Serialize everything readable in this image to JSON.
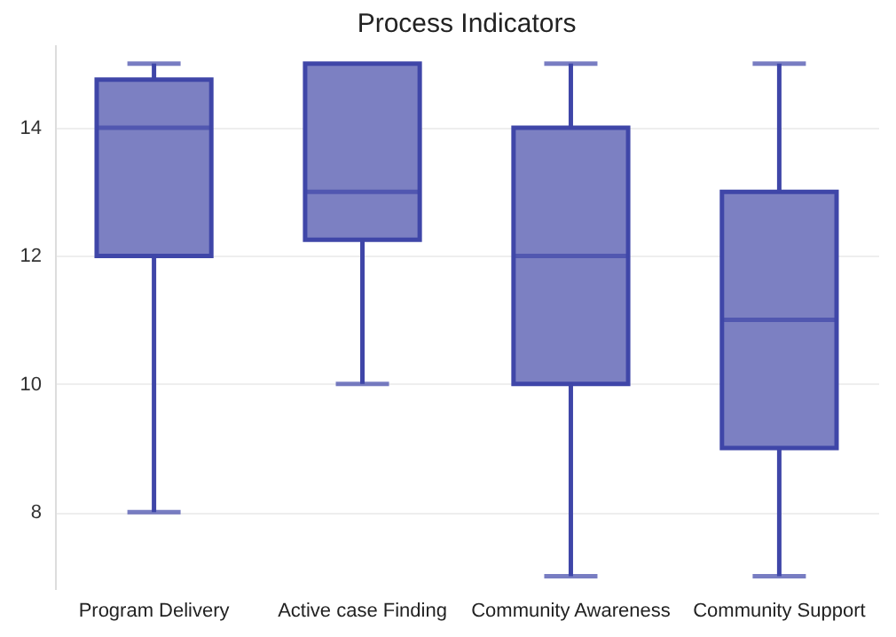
{
  "chart_data": {
    "type": "box",
    "title": "Process Indicators",
    "categories": [
      "Program Delivery",
      "Active case Finding",
      "Community Awareness",
      "Community Support"
    ],
    "series": [
      {
        "color": "#3f46a8",
        "boxes": [
          {
            "low": 8,
            "q1": 12,
            "median": 14,
            "q3": 14.75,
            "high": 15
          },
          {
            "low": 10,
            "q1": 12.25,
            "median": 13,
            "q3": 15,
            "high": 15
          },
          {
            "low": 7,
            "q1": 10,
            "median": 12,
            "q3": 14,
            "high": 15
          },
          {
            "low": 7,
            "q1": 9,
            "median": 11,
            "q3": 13,
            "high": 15
          }
        ]
      }
    ],
    "ylim": [
      6.8,
      15.3
    ],
    "yticks": [
      8,
      10,
      12,
      14
    ],
    "grid": "y"
  }
}
